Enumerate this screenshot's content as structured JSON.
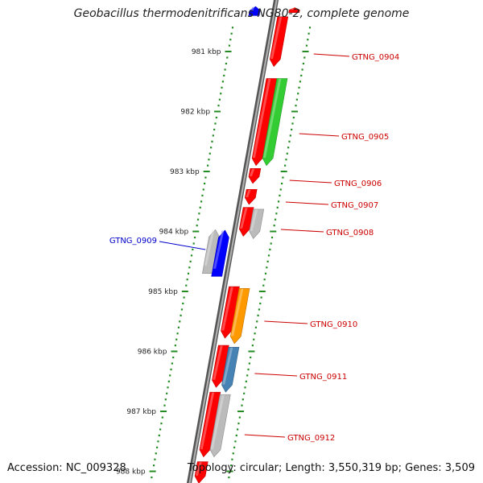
{
  "title": "Geobacillus thermodenitrificans NG80-2, complete genome",
  "footer": {
    "accession": "Accession: NC_009328",
    "summary": "Topology: circular; Length: 3,550,319 bp; Genes: 3,509"
  },
  "colors": {
    "red": "#ff0000",
    "green": "#33cc33",
    "blue": "#0000ff",
    "gray": "#bbbbbb",
    "orange": "#ff9900",
    "steelblue": "#4682b4",
    "tick": "#228b22",
    "label_red": "#cc0000",
    "label_blue": "#0000cc"
  },
  "ticks": [
    {
      "kbp": 981,
      "label": "981 kbp"
    },
    {
      "kbp": 982,
      "label": "982 kbp"
    },
    {
      "kbp": 983,
      "label": "983 kbp"
    },
    {
      "kbp": 984,
      "label": "984 kbp"
    },
    {
      "kbp": 985,
      "label": "985 kbp"
    },
    {
      "kbp": 986,
      "label": "986 kbp"
    },
    {
      "kbp": 987,
      "label": "987 kbp"
    },
    {
      "kbp": 988,
      "label": "988 kbp"
    }
  ],
  "features": [
    {
      "start": 980.27,
      "end": 980.35,
      "lane": 2,
      "color": "red",
      "dir": 1,
      "label": ""
    },
    {
      "start": 980.25,
      "end": 980.4,
      "lane": -2,
      "color": "blue",
      "dir": 1,
      "label": ""
    },
    {
      "start": 980.42,
      "end": 981.25,
      "lane": 1,
      "color": "red",
      "dir": -1,
      "label": "GTNG_0904"
    },
    {
      "start": 981.45,
      "end": 982.9,
      "lane": 1,
      "color": "red",
      "dir": -1,
      "label": ""
    },
    {
      "start": 981.45,
      "end": 982.9,
      "lane": 2,
      "color": "green",
      "dir": -1,
      "label": "GTNG_0905"
    },
    {
      "start": 982.95,
      "end": 983.2,
      "lane": 1,
      "color": "red",
      "dir": -1,
      "label": "GTNG_0906"
    },
    {
      "start": 983.3,
      "end": 983.55,
      "lane": 1,
      "color": "red",
      "dir": -1,
      "label": "GTNG_0907"
    },
    {
      "start": 983.6,
      "end": 984.08,
      "lane": 1,
      "color": "red",
      "dir": -1,
      "label": ""
    },
    {
      "start": 983.63,
      "end": 984.12,
      "lane": 2,
      "color": "gray",
      "dir": -1,
      "label": "GTNG_0908"
    },
    {
      "start": 983.97,
      "end": 984.7,
      "lane": -2,
      "color": "gray",
      "dir": 1,
      "label": "GTNG_0909"
    },
    {
      "start": 983.98,
      "end": 984.75,
      "lane": -1,
      "color": "blue",
      "dir": 1,
      "label": ""
    },
    {
      "start": 984.92,
      "end": 985.78,
      "lane": 1,
      "color": "red",
      "dir": -1,
      "label": ""
    },
    {
      "start": 984.95,
      "end": 985.87,
      "lane": 2,
      "color": "orange",
      "dir": -1,
      "label": "GTNG_0910"
    },
    {
      "start": 985.9,
      "end": 986.6,
      "lane": 1,
      "color": "red",
      "dir": -1,
      "label": ""
    },
    {
      "start": 985.93,
      "end": 986.68,
      "lane": 2,
      "color": "steelblue",
      "dir": -1,
      "label": "GTNG_0911"
    },
    {
      "start": 986.68,
      "end": 987.76,
      "lane": 1,
      "color": "red",
      "dir": -1,
      "label": ""
    },
    {
      "start": 986.72,
      "end": 987.76,
      "lane": 2,
      "color": "gray",
      "dir": -1,
      "label": "GTNG_0912"
    },
    {
      "start": 987.84,
      "end": 988.2,
      "lane": 1,
      "color": "red",
      "dir": -1,
      "label": ""
    }
  ]
}
